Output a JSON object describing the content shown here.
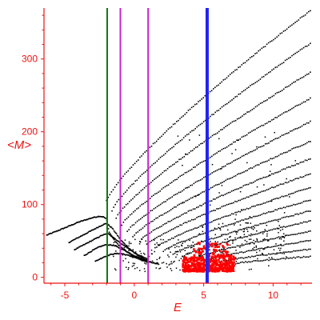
{
  "chart_data": {
    "type": "scatter",
    "title": "",
    "xlabel": "E",
    "ylabel": "<M>",
    "xlim": [
      -6.5,
      12.8
    ],
    "ylim": [
      -8,
      370
    ],
    "x_ticks": [
      {
        "value": -5,
        "label": "-5"
      },
      {
        "value": 0,
        "label": "0"
      },
      {
        "value": 5,
        "label": "5"
      },
      {
        "value": 10,
        "label": "10"
      }
    ],
    "y_ticks": [
      {
        "value": 0,
        "label": "0"
      },
      {
        "value": 100,
        "label": "100"
      },
      {
        "value": 200,
        "label": "200"
      },
      {
        "value": 300,
        "label": "300"
      }
    ],
    "vertical_lines": [
      {
        "x": -1.95,
        "color": "#117711"
      },
      {
        "x": -1.0,
        "color": "#cc22cc"
      },
      {
        "x": 1.0,
        "color": "#cc22cc"
      },
      {
        "x": 5.25,
        "color": "#2222ee"
      }
    ],
    "series": [
      {
        "color": "#000000",
        "branches": [
          {
            "x": [
              -6.3,
              -5.0,
              -4.0,
              -3.0,
              -2.5,
              -2.2,
              -2.0,
              -1.8,
              -1.4,
              -1.0,
              -0.5,
              0.0,
              0.5,
              1.0
            ],
            "y": [
              58,
              68,
              76,
              82,
              84,
              83,
              80,
              62,
              50,
              42,
              35,
              28,
              24,
              20
            ]
          },
          {
            "x": [
              -4.7,
              -4.0,
              -3.0,
              -2.3,
              -2.0,
              -1.6,
              -1.0,
              -0.5,
              0.0,
              0.5,
              1.0
            ],
            "y": [
              48,
              55,
              65,
              72,
              74,
              68,
              52,
              42,
              34,
              28,
              22
            ]
          },
          {
            "x": [
              -4.3,
              -3.5,
              -2.8,
              -2.3,
              -1.9,
              -1.5,
              -1.0,
              -0.3,
              0.3,
              1.0
            ],
            "y": [
              38,
              46,
              53,
              58,
              60,
              55,
              47,
              38,
              30,
              25
            ]
          },
          {
            "x": [
              -3.6,
              -3.0,
              -2.5,
              -2.0,
              -1.5,
              -1.0,
              -0.5,
              0.0,
              0.8
            ],
            "y": [
              30,
              37,
              42,
              45,
              44,
              40,
              35,
              30,
              24
            ]
          },
          {
            "x": [
              -2.8,
              -2.2,
              -1.6,
              -1.0,
              -0.4,
              0.3,
              1.0,
              1.8
            ],
            "y": [
              22,
              28,
              32,
              33,
              30,
              26,
              22,
              18
            ]
          }
        ],
        "upper_bands": [
          {
            "x": [
              -2.0,
              12.8
            ],
            "y": [
              105,
              368
            ]
          },
          {
            "x": [
              -1.6,
              12.8
            ],
            "y": [
              92,
              323
            ]
          },
          {
            "x": [
              -1.3,
              12.8
            ],
            "y": [
              82,
              283
            ]
          },
          {
            "x": [
              -0.9,
              12.8
            ],
            "y": [
              72,
              247
            ]
          },
          {
            "x": [
              -0.5,
              12.8
            ],
            "y": [
              63,
              215
            ]
          },
          {
            "x": [
              -0.1,
              12.8
            ],
            "y": [
              56,
              188
            ]
          },
          {
            "x": [
              0.4,
              12.8
            ],
            "y": [
              50,
              164
            ]
          },
          {
            "x": [
              0.9,
              12.8
            ],
            "y": [
              45,
              143
            ]
          },
          {
            "x": [
              1.5,
              12.8
            ],
            "y": [
              40,
              124
            ]
          },
          {
            "x": [
              2.1,
              12.8
            ],
            "y": [
              36,
              107
            ]
          },
          {
            "x": [
              2.8,
              12.8
            ],
            "y": [
              32,
              92
            ]
          },
          {
            "x": [
              3.5,
              12.8
            ],
            "y": [
              29,
              78
            ]
          },
          {
            "x": [
              4.3,
              12.8
            ],
            "y": [
              26,
              64
            ]
          },
          {
            "x": [
              5.2,
              12.8
            ],
            "y": [
              23,
              51
            ]
          },
          {
            "x": [
              6.2,
              12.8
            ],
            "y": [
              21,
              39
            ]
          },
          {
            "x": [
              7.3,
              12.8
            ],
            "y": [
              19,
              29
            ]
          }
        ]
      },
      {
        "color": "#ff0000",
        "clusters": [
          {
            "x_range": [
              3.5,
              5.1
            ],
            "y_range": [
              8,
              28
            ]
          },
          {
            "x_range": [
              5.3,
              7.2
            ],
            "y_range": [
              8,
              30
            ]
          },
          {
            "x_range": [
              4.2,
              6.8
            ],
            "y_range": [
              28,
              48
            ]
          }
        ]
      }
    ]
  }
}
